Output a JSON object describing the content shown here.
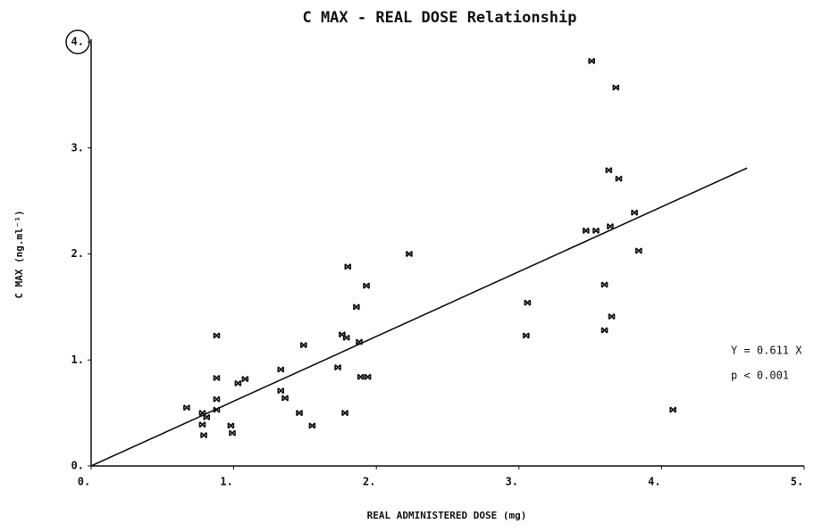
{
  "chart_data": {
    "type": "scatter",
    "title": "C MAX - REAL DOSE Relationship",
    "x_label": "REAL ADMINISTERED DOSE (mg)",
    "y_label": "C MAX (ng.ml⁻¹)",
    "annotations": [
      "Y = 0.611 X",
      "p < 0.001"
    ],
    "xlim": [
      0,
      5
    ],
    "ylim": [
      0,
      4
    ],
    "xticks": [
      {
        "value": 0,
        "label": "0."
      },
      {
        "value": 1,
        "label": "1."
      },
      {
        "value": 2,
        "label": "2."
      },
      {
        "value": 3,
        "label": "3."
      },
      {
        "value": 4,
        "label": "4."
      },
      {
        "value": 5,
        "label": "5."
      }
    ],
    "yticks": [
      {
        "value": 0,
        "label": "0."
      },
      {
        "value": 1,
        "label": "1."
      },
      {
        "value": 2,
        "label": "2."
      },
      {
        "value": 3,
        "label": "3."
      },
      {
        "value": 4,
        "label": "4."
      }
    ],
    "color": "#111111",
    "fit": {
      "slope": 0.611,
      "x": [
        0,
        4.6
      ]
    },
    "x": [
      0.67,
      0.78,
      0.78,
      0.79,
      0.81,
      0.88,
      0.88,
      0.88,
      0.88,
      0.98,
      0.99,
      1.03,
      1.08,
      1.33,
      1.33,
      1.36,
      1.49,
      1.46,
      1.55,
      1.73,
      1.76,
      1.79,
      1.78,
      1.8,
      1.86,
      1.88,
      1.93,
      1.89,
      1.94,
      2.23,
      3.06,
      3.05,
      3.47,
      3.54,
      3.51,
      3.68,
      3.63,
      3.7,
      3.64,
      3.6,
      3.65,
      3.6,
      3.81,
      3.84,
      4.08
    ],
    "values": [
      0.55,
      0.5,
      0.39,
      0.29,
      0.46,
      1.23,
      0.83,
      0.63,
      0.53,
      0.38,
      0.31,
      0.78,
      0.82,
      0.91,
      0.71,
      0.64,
      1.14,
      0.5,
      0.38,
      0.93,
      1.24,
      1.21,
      0.5,
      1.88,
      1.5,
      1.17,
      1.7,
      0.84,
      0.84,
      2.0,
      1.54,
      1.23,
      2.22,
      2.22,
      3.82,
      3.57,
      2.79,
      2.71,
      2.26,
      1.71,
      1.41,
      1.28,
      2.39,
      2.03,
      0.53
    ]
  }
}
